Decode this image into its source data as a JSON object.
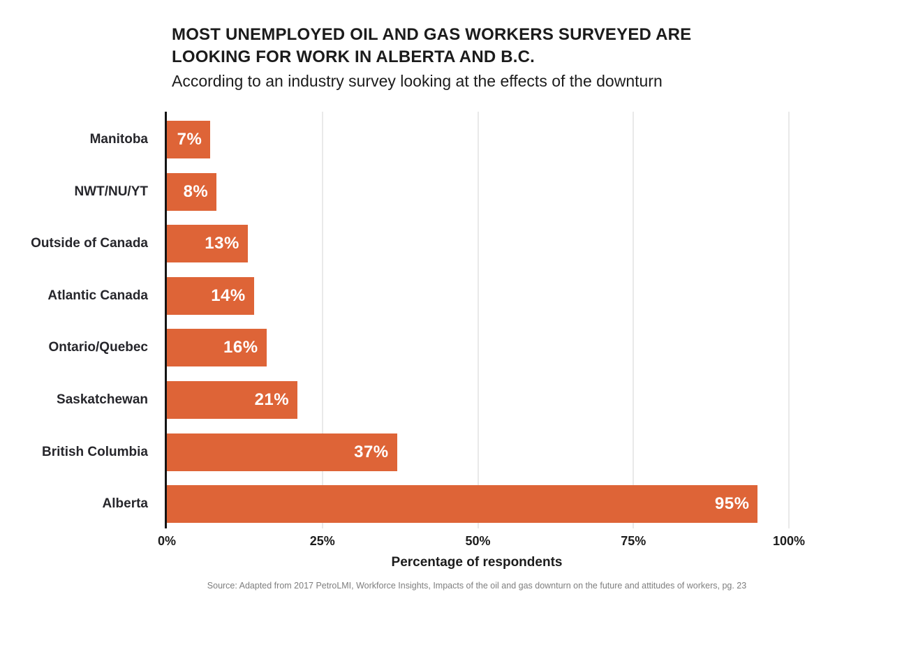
{
  "accent_color": "#DE6437",
  "chart_data": {
    "type": "bar",
    "orientation": "horizontal",
    "title": "MOST UNEMPLOYED OIL AND GAS WORKERS SURVEYED ARE\nLOOKING FOR WORK IN ALBERTA AND B.C.",
    "subtitle": "According to an industry survey looking at the effects of the downturn",
    "categories": [
      "Manitoba",
      "NWT/NU/YT",
      "Outside of Canada",
      "Atlantic Canada",
      "Ontario/Quebec",
      "Saskatchewan",
      "British Columbia",
      "Alberta"
    ],
    "values": [
      7,
      8,
      13,
      14,
      16,
      21,
      37,
      95
    ],
    "value_labels": [
      "7%",
      "8%",
      "13%",
      "14%",
      "16%",
      "21%",
      "37%",
      "95%"
    ],
    "xlabel": "Percentage of respondents",
    "ylabel": "",
    "xlim": [
      0,
      100
    ],
    "x_tick_values": [
      0,
      25,
      50,
      75,
      100
    ],
    "x_tick_labels": [
      "0%",
      "25%",
      "50%",
      "75%",
      "100%"
    ],
    "bar_color": "#DE6437",
    "value_label_color": "#ffffff",
    "grid": "vertical gridlines at 25% intervals, light gray",
    "legend": "none"
  },
  "footer": {
    "source": "Source: Adapted from 2017 PetroLMI, Workforce Insights, Impacts of the oil and gas downturn on the future and attitudes of workers, pg. 23"
  }
}
